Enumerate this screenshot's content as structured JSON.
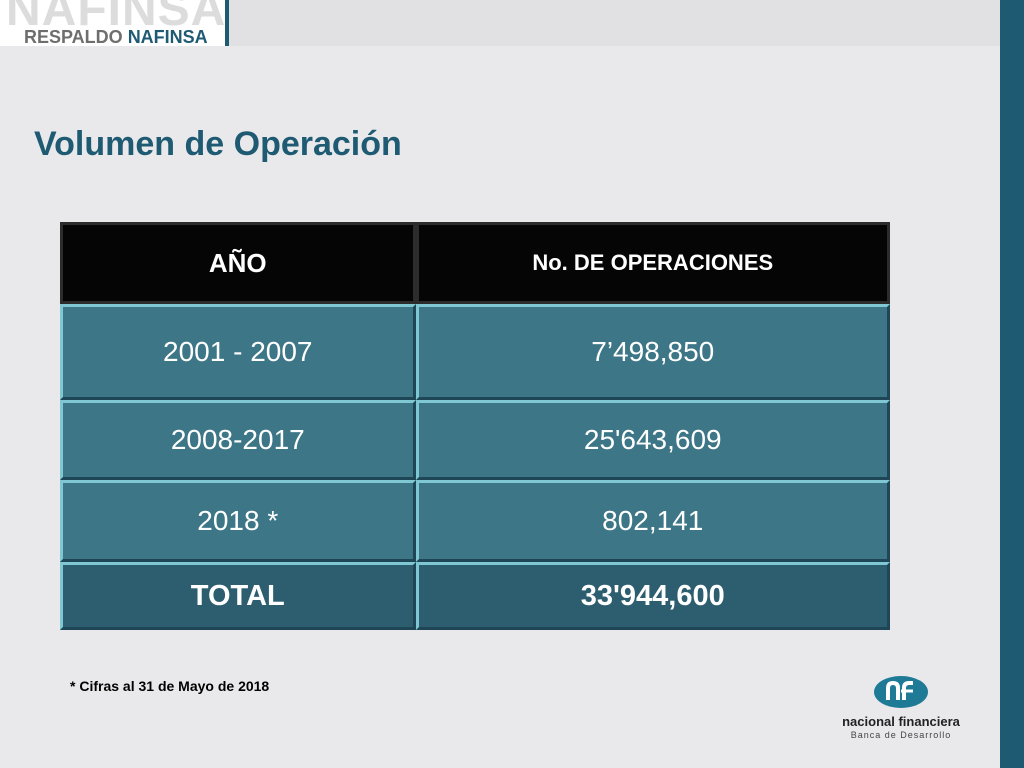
{
  "header": {
    "watermark": "NAFINSA",
    "brand_part1": "RESPALDO ",
    "brand_part2": "NAFINSA"
  },
  "title": "Volumen de Operación",
  "table": {
    "headers": [
      "AÑO",
      "No. DE OPERACIONES"
    ],
    "rows": [
      [
        "2001 - 2007",
        "7’498,850"
      ],
      [
        "2008-2017",
        "25'643,609"
      ],
      [
        "2018 *",
        "802,141"
      ]
    ],
    "total": [
      "TOTAL",
      "33'944,600"
    ]
  },
  "footnote": "* Cifras al 31 de Mayo de 2018",
  "logo": {
    "name": "nacional financiera",
    "subtitle": "Banca de Desarrollo",
    "icon": "nafin-logo-icon"
  },
  "colors": {
    "brand": "#1f5a73",
    "header_cell": "#050505",
    "body_cell": "#3d7687",
    "total_cell": "#2c5e6f"
  }
}
